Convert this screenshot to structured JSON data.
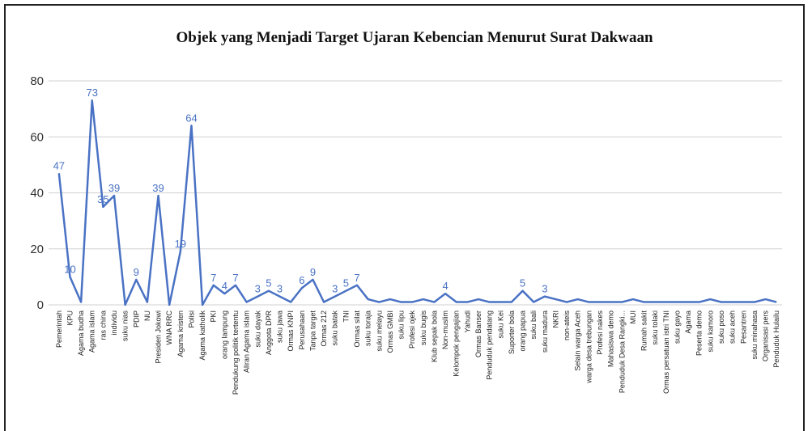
{
  "chart_data": {
    "type": "line",
    "title": "Objek yang Menjadi Target Ujaran Kebencian Menurut Surat Dakwaan",
    "categories": [
      "Pemerintah",
      "KPU",
      "Agama budha",
      "Agama islam",
      "ras china",
      "individu",
      "suku nias",
      "PDIP",
      "NU",
      "Presiden Jokowi",
      "WNA RRC",
      "Agama kristen",
      "Polisi",
      "Agama katholik",
      "PKI",
      "orang lampung",
      "Pendukung politik tertentu",
      "Aliran Agama islam",
      "suku dayak",
      "Anggota DPR",
      "suku jawa",
      "Ormas KNPI",
      "Perusahaan",
      "Tanpa target",
      "Ormas 212",
      "suku batak",
      "TNI",
      "Ormas silat",
      "suku toraja",
      "suku melayu",
      "Ormas GMBI",
      "suku lipu",
      "Profesi ojek",
      "suku bugis",
      "Klub sepak bola",
      "Non-muslim",
      "Kelompok pengajian",
      "Yahudi",
      "Ormas Banser",
      "Penduduk pendatang",
      "suku Kei",
      "Suporter bola",
      "orang papua",
      "suku bali",
      "suku madura",
      "NKRI",
      "non-ateis",
      "Selain warga Aceh",
      "warga desa trebungan",
      "Profesi nakes",
      "Mahasiswa demo",
      "Penduduk Desa Rangki...",
      "MUI",
      "Rumah sakit",
      "suku tolaki",
      "Ormas persatuan istri TNI",
      "suku gayo",
      "Agama",
      "Peserta demo",
      "suku kamoro",
      "suku poso",
      "suku aceh",
      "Pesantren",
      "suku minahasa",
      "Organisasi pers",
      "Penduduk Hulailu"
    ],
    "series": [
      {
        "name": "Objek",
        "color": "#4a72c4",
        "values": [
          47,
          10,
          1,
          73,
          35,
          39,
          0,
          9,
          1,
          39,
          0,
          19,
          64,
          0,
          7,
          4,
          7,
          1,
          3,
          5,
          3,
          1,
          6,
          9,
          1,
          3,
          5,
          7,
          2,
          1,
          2,
          1,
          1,
          2,
          1,
          4,
          1,
          1,
          2,
          1,
          1,
          1,
          5,
          1,
          3,
          2,
          1,
          2,
          1,
          1,
          1,
          1,
          2,
          1,
          1,
          1,
          1,
          1,
          1,
          2,
          1,
          1,
          1,
          1,
          2,
          1
        ],
        "value_labels": [
          "47",
          "10",
          null,
          "73",
          "35",
          "39",
          null,
          "9",
          null,
          "39",
          null,
          "19",
          "64",
          null,
          "7",
          "4",
          "7",
          null,
          "3",
          "5",
          "3",
          null,
          "6",
          "9",
          null,
          "3",
          "5",
          "7",
          null,
          null,
          null,
          null,
          null,
          null,
          null,
          "4",
          null,
          null,
          null,
          null,
          null,
          null,
          "5",
          null,
          "3",
          null,
          null,
          null,
          null,
          null,
          null,
          null,
          null,
          null,
          null,
          null,
          null,
          null,
          null,
          null,
          null,
          null,
          null,
          null,
          null,
          null
        ]
      }
    ],
    "ylim": [
      0,
      80
    ],
    "yticks": [
      0,
      20,
      40,
      60,
      80
    ],
    "grid": true
  }
}
